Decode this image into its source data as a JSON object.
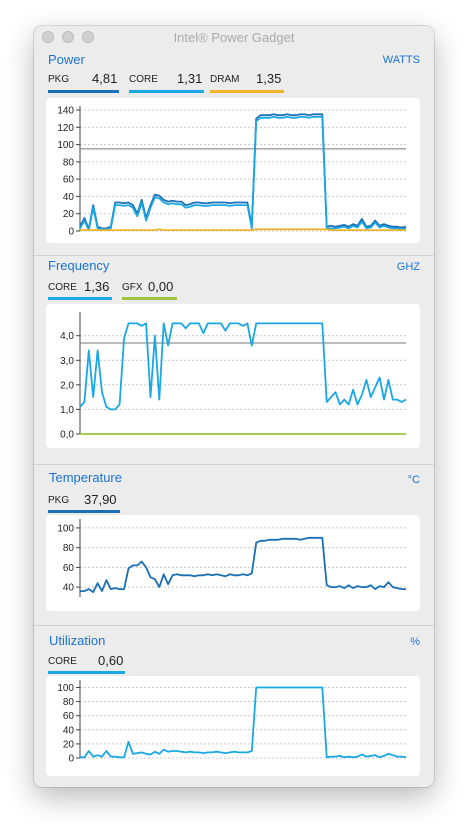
{
  "window": {
    "title": "Intel® Power Gadget"
  },
  "sections": {
    "power": {
      "title": "Power",
      "unit": "WATTS",
      "metrics": [
        {
          "label": "PKG",
          "value": "4,81",
          "color": "#1a6fb5"
        },
        {
          "label": "CORE",
          "value": "1,31",
          "color": "#1aa7e6"
        },
        {
          "label": "DRAM",
          "value": "1,35",
          "color": "#f0b428"
        }
      ]
    },
    "frequency": {
      "title": "Frequency",
      "unit": "GHZ",
      "metrics": [
        {
          "label": "CORE",
          "value": "1,36",
          "color": "#1aa7e6"
        },
        {
          "label": "GFX",
          "value": "0,00",
          "color": "#9cc43c"
        }
      ]
    },
    "temperature": {
      "title": "Temperature",
      "unit": "°C",
      "metrics": [
        {
          "label": "PKG",
          "value": "37,90",
          "color": "#1a6fb5"
        }
      ]
    },
    "utilization": {
      "title": "Utilization",
      "unit": "%",
      "metrics": [
        {
          "label": "CORE",
          "value": "0,60",
          "color": "#1aa7e6"
        }
      ]
    }
  },
  "chart_data": [
    {
      "type": "line",
      "name": "power",
      "ylim": [
        0,
        140
      ],
      "yticks": [
        "0",
        "20",
        "40",
        "60",
        "80",
        "100",
        "120",
        "140"
      ],
      "threshold": 95,
      "series": [
        {
          "name": "PKG",
          "color": "#1a6fb5",
          "values": [
            5,
            15,
            2,
            30,
            5,
            3,
            3,
            5,
            33,
            33,
            32,
            33,
            30,
            20,
            36,
            15,
            30,
            42,
            41,
            36,
            34,
            35,
            34,
            34,
            30,
            31,
            33,
            33,
            32,
            32,
            33,
            33,
            33,
            33,
            32,
            33,
            33,
            33,
            33,
            6,
            130,
            134,
            134,
            134,
            135,
            134,
            134,
            135,
            134,
            134,
            135,
            135,
            134,
            135,
            135,
            135,
            5,
            6,
            5,
            6,
            7,
            5,
            8,
            6,
            14,
            5,
            6,
            12,
            6,
            8,
            6,
            5,
            5,
            4,
            5
          ]
        },
        {
          "name": "CORE",
          "color": "#1aa7e6",
          "values": [
            3,
            12,
            1,
            27,
            3,
            2,
            2,
            3,
            30,
            30,
            29,
            30,
            27,
            17,
            33,
            12,
            27,
            39,
            38,
            33,
            31,
            32,
            31,
            31,
            27,
            28,
            30,
            30,
            29,
            29,
            30,
            30,
            30,
            30,
            29,
            30,
            30,
            30,
            30,
            3,
            127,
            131,
            131,
            131,
            132,
            131,
            131,
            132,
            131,
            131,
            132,
            132,
            131,
            132,
            132,
            132,
            3,
            3,
            3,
            4,
            5,
            3,
            6,
            4,
            11,
            3,
            4,
            10,
            4,
            6,
            4,
            3,
            3,
            2,
            3
          ]
        },
        {
          "name": "DRAM",
          "color": "#f0b428",
          "values": [
            1,
            1,
            1,
            1,
            1,
            1,
            1,
            1,
            1,
            1,
            1,
            1,
            1,
            1,
            1,
            1,
            1,
            1,
            2,
            1,
            1,
            1,
            1,
            1,
            1,
            1,
            1,
            1,
            1,
            1,
            1,
            1,
            1,
            1,
            1,
            1,
            1,
            1,
            1,
            1,
            2,
            2,
            2,
            2,
            2,
            2,
            2,
            2,
            2,
            2,
            2,
            2,
            2,
            2,
            2,
            2,
            2,
            1,
            1,
            1,
            1,
            1,
            1,
            1,
            1,
            1,
            1,
            1,
            1,
            1,
            1,
            1,
            1,
            1,
            1
          ]
        }
      ]
    },
    {
      "type": "line",
      "name": "frequency",
      "ylim": [
        0,
        4.8
      ],
      "yticks": [
        "0,0",
        "1,0",
        "2,0",
        "3,0",
        "4,0"
      ],
      "threshold": 3.7,
      "series": [
        {
          "name": "CORE",
          "color": "#1aa7e6",
          "values": [
            1.1,
            1.3,
            3.4,
            1.5,
            3.4,
            1.7,
            1.1,
            1.0,
            1.0,
            1.2,
            3.9,
            4.5,
            4.5,
            4.5,
            4.4,
            4.5,
            1.5,
            4.0,
            1.4,
            4.5,
            3.6,
            4.5,
            4.5,
            4.5,
            4.3,
            4.5,
            4.5,
            4.5,
            4.1,
            4.5,
            4.5,
            4.5,
            4.5,
            4.2,
            4.5,
            4.5,
            4.5,
            4.4,
            4.5,
            3.6,
            4.5,
            4.5,
            4.5,
            4.5,
            4.5,
            4.5,
            4.5,
            4.5,
            4.5,
            4.5,
            4.5,
            4.5,
            4.5,
            4.5,
            4.5,
            4.5,
            1.3,
            1.5,
            1.7,
            1.2,
            1.4,
            1.2,
            1.8,
            1.2,
            1.6,
            2.2,
            1.5,
            1.9,
            2.3,
            1.4,
            2.2,
            1.4,
            1.4,
            1.3,
            1.4
          ]
        },
        {
          "name": "GFX",
          "color": "#9cc43c",
          "values": [
            0,
            0,
            0,
            0,
            0,
            0,
            0,
            0,
            0,
            0,
            0,
            0,
            0,
            0,
            0,
            0,
            0,
            0,
            0,
            0,
            0,
            0,
            0,
            0,
            0,
            0,
            0,
            0,
            0,
            0,
            0,
            0,
            0,
            0,
            0,
            0,
            0,
            0,
            0,
            0,
            0,
            0,
            0,
            0,
            0,
            0,
            0,
            0,
            0,
            0,
            0,
            0,
            0,
            0,
            0,
            0,
            0,
            0,
            0,
            0,
            0,
            0,
            0,
            0,
            0,
            0,
            0,
            0,
            0,
            0,
            0,
            0,
            0,
            0,
            0
          ]
        }
      ]
    },
    {
      "type": "line",
      "name": "temperature",
      "ylim": [
        30,
        105
      ],
      "yticks": [
        "40",
        "60",
        "80",
        "100"
      ],
      "series": [
        {
          "name": "PKG",
          "color": "#1a6fb5",
          "values": [
            36,
            36,
            38,
            35,
            44,
            36,
            47,
            38,
            39,
            38,
            38,
            59,
            62,
            62,
            66,
            60,
            50,
            48,
            40,
            53,
            43,
            52,
            53,
            52,
            52,
            52,
            51,
            52,
            52,
            53,
            52,
            53,
            52,
            51,
            53,
            52,
            52,
            53,
            52,
            54,
            85,
            87,
            87,
            88,
            88,
            88,
            89,
            89,
            89,
            89,
            88,
            89,
            90,
            90,
            90,
            90,
            42,
            40,
            40,
            41,
            39,
            42,
            39,
            41,
            40,
            40,
            42,
            38,
            41,
            40,
            45,
            40,
            39,
            38,
            38
          ]
        }
      ]
    },
    {
      "type": "line",
      "name": "utilization",
      "ylim": [
        0,
        105
      ],
      "yticks": [
        "0",
        "20",
        "40",
        "60",
        "80",
        "100"
      ],
      "series": [
        {
          "name": "CORE",
          "color": "#1aa7e6",
          "values": [
            1,
            1,
            10,
            2,
            4,
            2,
            10,
            2,
            2,
            1,
            1,
            23,
            6,
            7,
            8,
            6,
            5,
            9,
            6,
            12,
            9,
            10,
            10,
            9,
            8,
            9,
            8,
            8,
            7,
            8,
            8,
            9,
            8,
            7,
            8,
            9,
            8,
            8,
            8,
            10,
            100,
            100,
            100,
            100,
            100,
            100,
            100,
            100,
            100,
            100,
            100,
            100,
            100,
            100,
            100,
            100,
            1,
            2,
            2,
            3,
            1,
            2,
            1,
            2,
            5,
            2,
            3,
            4,
            1,
            3,
            6,
            4,
            2,
            2,
            1
          ]
        }
      ]
    }
  ]
}
